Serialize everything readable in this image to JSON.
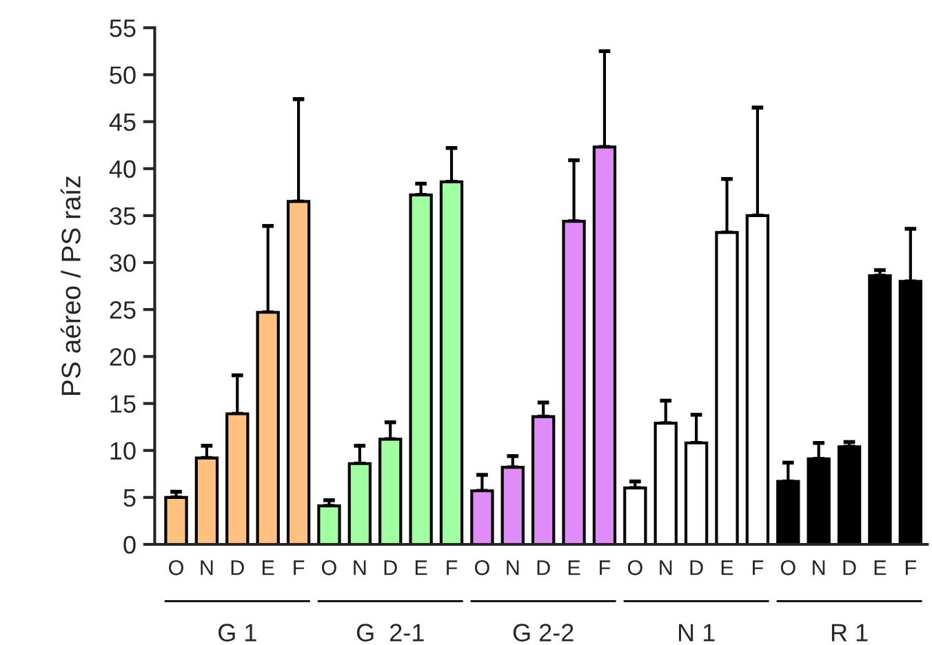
{
  "chart_data": {
    "type": "bar",
    "ylabel": "PS aéreo / PS raíz",
    "categories": [
      "O",
      "N",
      "D",
      "E",
      "F",
      "O",
      "N",
      "D",
      "E",
      "F",
      "O",
      "N",
      "D",
      "E",
      "F",
      "O",
      "N",
      "D",
      "E",
      "F",
      "O",
      "N",
      "D",
      "E",
      "F"
    ],
    "values": [
      5.0,
      9.2,
      13.9,
      24.7,
      36.5,
      4.1,
      8.6,
      11.2,
      37.2,
      38.6,
      5.7,
      8.2,
      13.6,
      34.4,
      42.3,
      6.0,
      12.9,
      10.8,
      33.2,
      35.0,
      6.7,
      9.1,
      10.4,
      28.6,
      28.0
    ],
    "errors": [
      [
        5.0,
        5.6
      ],
      [
        9.2,
        10.5
      ],
      [
        13.9,
        18.0
      ],
      [
        24.7,
        33.9
      ],
      [
        36.5,
        47.4
      ],
      [
        4.1,
        4.7
      ],
      [
        8.6,
        10.5
      ],
      [
        11.2,
        13.0
      ],
      [
        37.2,
        38.4
      ],
      [
        38.6,
        42.2
      ],
      [
        5.7,
        7.4
      ],
      [
        8.2,
        9.4
      ],
      [
        13.6,
        15.1
      ],
      [
        34.4,
        40.9
      ],
      [
        42.3,
        52.5
      ],
      [
        6.0,
        6.7
      ],
      [
        12.9,
        15.3
      ],
      [
        10.8,
        13.8
      ],
      [
        33.2,
        38.9
      ],
      [
        35.0,
        46.5
      ],
      [
        6.7,
        8.7
      ],
      [
        9.1,
        10.8
      ],
      [
        10.4,
        10.9
      ],
      [
        28.6,
        29.2
      ],
      [
        28.0,
        33.6
      ]
    ],
    "colors": [
      "#ffc080",
      "#ffc080",
      "#ffc080",
      "#ffc080",
      "#ffc080",
      "#a0ffa0",
      "#a0ffa0",
      "#a0ffa0",
      "#a0ffa0",
      "#a0ffa0",
      "#e08cf8",
      "#e08cf8",
      "#e08cf8",
      "#e08cf8",
      "#e08cf8",
      "#ffffff",
      "#ffffff",
      "#ffffff",
      "#ffffff",
      "#ffffff",
      "#000000",
      "#000000",
      "#000000",
      "#000000",
      "#000000"
    ],
    "annotations": [
      "G 1",
      "G  2-1",
      "G 2-2",
      "N 1",
      "R 1"
    ],
    "ylim": [
      0,
      55
    ],
    "yticks": [
      0,
      5,
      10,
      15,
      20,
      25,
      30,
      35,
      40,
      45,
      50,
      55
    ],
    "grid": false,
    "legend": false
  }
}
